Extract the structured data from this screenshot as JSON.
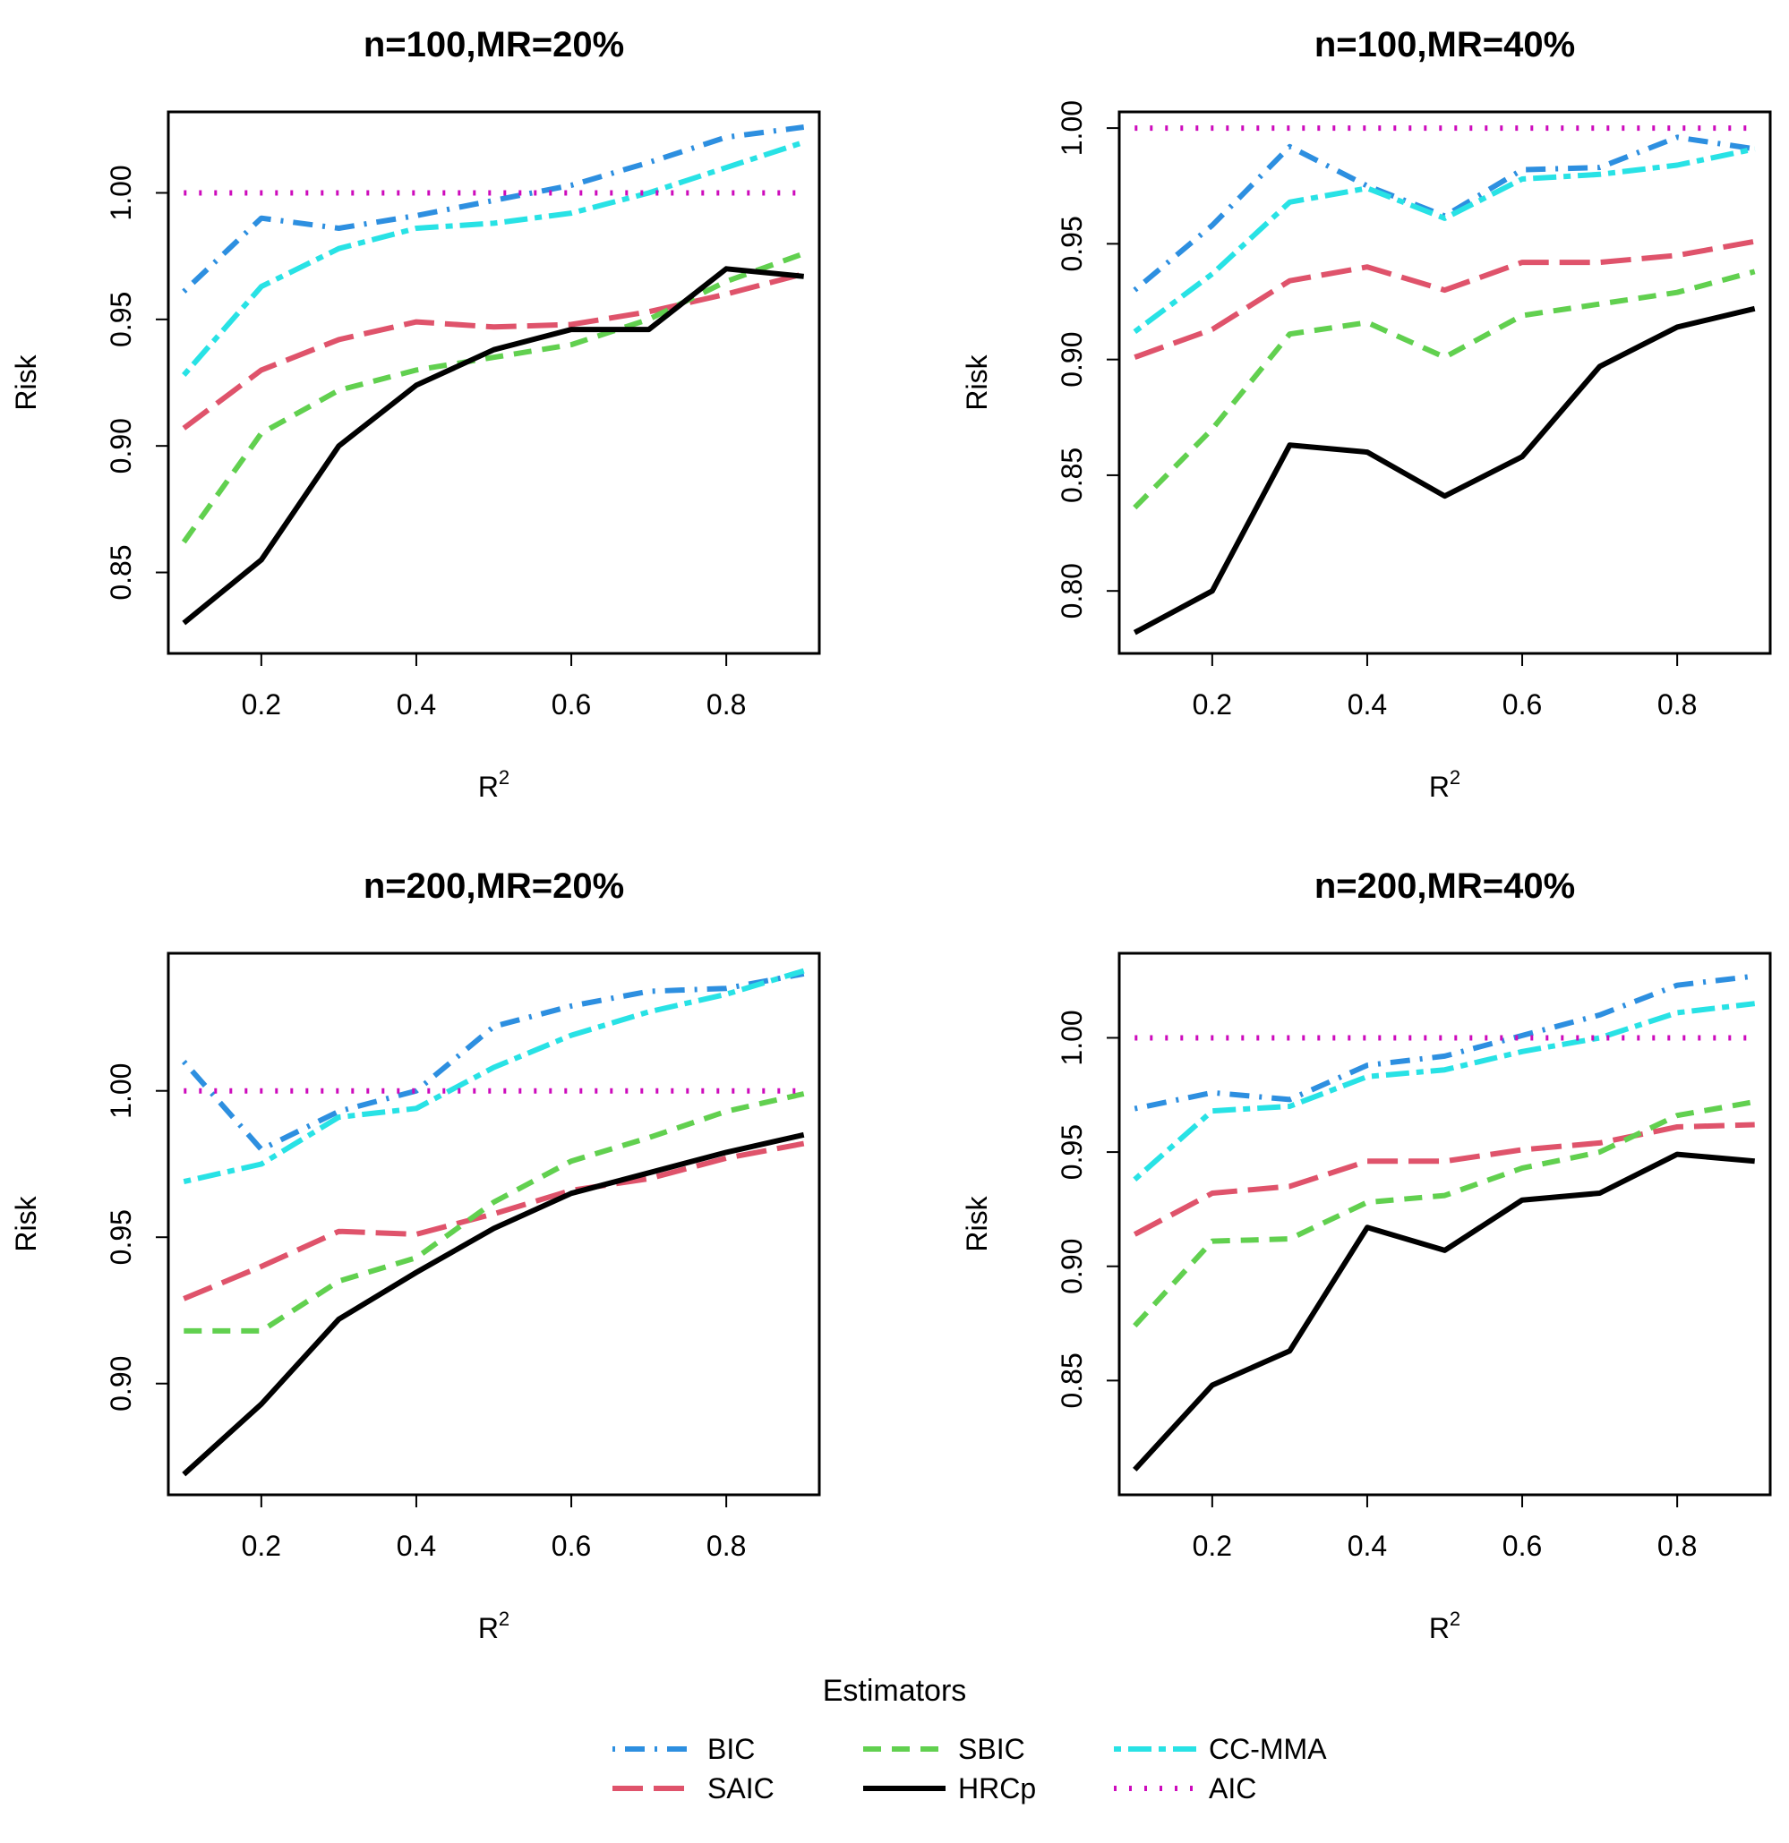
{
  "chart_data": [
    {
      "type": "line",
      "title": "n=100,MR=20%",
      "xlabel": "R",
      "xlabel_sup": "2",
      "ylabel": "Risk",
      "xlim": [
        0.08,
        0.92
      ],
      "ylim": [
        0.818,
        1.032
      ],
      "x_ticks": [
        0.2,
        0.4,
        0.6,
        0.8
      ],
      "x_tick_labels": [
        "0.2",
        "0.4",
        "0.6",
        "0.8"
      ],
      "y_ticks": [
        0.85,
        0.9,
        0.95,
        1.0
      ],
      "y_tick_labels": [
        "0.85",
        "0.90",
        "0.95",
        "1.00"
      ],
      "x": [
        0.1,
        0.2,
        0.3,
        0.4,
        0.5,
        0.6,
        0.7,
        0.8,
        0.9
      ],
      "series": [
        {
          "name": "BIC",
          "values": [
            0.961,
            0.99,
            0.986,
            0.991,
            0.997,
            1.003,
            1.012,
            1.022,
            1.026
          ]
        },
        {
          "name": "SAIC",
          "values": [
            0.907,
            0.93,
            0.942,
            0.949,
            0.947,
            0.948,
            0.953,
            0.96,
            0.968
          ]
        },
        {
          "name": "SBIC",
          "values": [
            0.862,
            0.905,
            0.922,
            0.93,
            0.935,
            0.94,
            0.95,
            0.965,
            0.976
          ]
        },
        {
          "name": "HRCp",
          "values": [
            0.83,
            0.855,
            0.9,
            0.924,
            0.938,
            0.946,
            0.946,
            0.97,
            0.967
          ]
        },
        {
          "name": "CC-MMA",
          "values": [
            0.928,
            0.963,
            0.978,
            0.986,
            0.988,
            0.992,
            1.0,
            1.01,
            1.02
          ]
        },
        {
          "name": "AIC",
          "values": [
            1.0,
            1.0,
            1.0,
            1.0,
            1.0,
            1.0,
            1.0,
            1.0,
            1.0
          ]
        }
      ]
    },
    {
      "type": "line",
      "title": "n=100,MR=40%",
      "xlabel": "R",
      "xlabel_sup": "2",
      "ylabel": "Risk",
      "xlim": [
        0.08,
        0.92
      ],
      "ylim": [
        0.773,
        1.007
      ],
      "x_ticks": [
        0.2,
        0.4,
        0.6,
        0.8
      ],
      "x_tick_labels": [
        "0.2",
        "0.4",
        "0.6",
        "0.8"
      ],
      "y_ticks": [
        0.8,
        0.85,
        0.9,
        0.95,
        1.0
      ],
      "y_tick_labels": [
        "0.80",
        "0.85",
        "0.90",
        "0.95",
        "1.00"
      ],
      "x": [
        0.1,
        0.2,
        0.3,
        0.4,
        0.5,
        0.6,
        0.7,
        0.8,
        0.9
      ],
      "series": [
        {
          "name": "BIC",
          "values": [
            0.93,
            0.958,
            0.992,
            0.975,
            0.962,
            0.982,
            0.983,
            0.996,
            0.991
          ]
        },
        {
          "name": "SAIC",
          "values": [
            0.901,
            0.913,
            0.934,
            0.94,
            0.93,
            0.942,
            0.942,
            0.945,
            0.951
          ]
        },
        {
          "name": "SBIC",
          "values": [
            0.836,
            0.87,
            0.911,
            0.916,
            0.901,
            0.919,
            0.924,
            0.929,
            0.938
          ]
        },
        {
          "name": "HRCp",
          "values": [
            0.782,
            0.8,
            0.863,
            0.86,
            0.841,
            0.858,
            0.897,
            0.914,
            0.922
          ]
        },
        {
          "name": "CC-MMA",
          "values": [
            0.912,
            0.937,
            0.968,
            0.974,
            0.961,
            0.978,
            0.98,
            0.984,
            0.991
          ]
        },
        {
          "name": "AIC",
          "values": [
            1.0,
            1.0,
            1.0,
            1.0,
            1.0,
            1.0,
            1.0,
            1.0,
            1.0
          ]
        }
      ]
    },
    {
      "type": "line",
      "title": "n=200,MR=20%",
      "xlabel": "R",
      "xlabel_sup": "2",
      "ylabel": "Risk",
      "xlim": [
        0.08,
        0.92
      ],
      "ylim": [
        0.862,
        1.047
      ],
      "x_ticks": [
        0.2,
        0.4,
        0.6,
        0.8
      ],
      "x_tick_labels": [
        "0.2",
        "0.4",
        "0.6",
        "0.8"
      ],
      "y_ticks": [
        0.9,
        0.95,
        1.0
      ],
      "y_tick_labels": [
        "0.90",
        "0.95",
        "1.00"
      ],
      "x": [
        0.1,
        0.2,
        0.3,
        0.4,
        0.5,
        0.6,
        0.7,
        0.8,
        0.9
      ],
      "series": [
        {
          "name": "BIC",
          "values": [
            1.01,
            0.98,
            0.993,
            1.0,
            1.022,
            1.029,
            1.034,
            1.035,
            1.04
          ]
        },
        {
          "name": "SAIC",
          "values": [
            0.929,
            0.94,
            0.952,
            0.951,
            0.958,
            0.966,
            0.97,
            0.977,
            0.982
          ]
        },
        {
          "name": "SBIC",
          "values": [
            0.918,
            0.918,
            0.935,
            0.943,
            0.962,
            0.976,
            0.984,
            0.993,
            0.999
          ]
        },
        {
          "name": "HRCp",
          "values": [
            0.869,
            0.893,
            0.922,
            0.938,
            0.953,
            0.965,
            0.972,
            0.979,
            0.985
          ]
        },
        {
          "name": "CC-MMA",
          "values": [
            0.969,
            0.975,
            0.991,
            0.994,
            1.008,
            1.019,
            1.027,
            1.033,
            1.041
          ]
        },
        {
          "name": "AIC",
          "values": [
            1.0,
            1.0,
            1.0,
            1.0,
            1.0,
            1.0,
            1.0,
            1.0,
            1.0
          ]
        }
      ]
    },
    {
      "type": "line",
      "title": "n=200,MR=40%",
      "xlabel": "R",
      "xlabel_sup": "2",
      "ylabel": "Risk",
      "xlim": [
        0.08,
        0.92
      ],
      "ylim": [
        0.8,
        1.037
      ],
      "x_ticks": [
        0.2,
        0.4,
        0.6,
        0.8
      ],
      "x_tick_labels": [
        "0.2",
        "0.4",
        "0.6",
        "0.8"
      ],
      "y_ticks": [
        0.85,
        0.9,
        0.95,
        1.0
      ],
      "y_tick_labels": [
        "0.85",
        "0.90",
        "0.95",
        "1.00"
      ],
      "x": [
        0.1,
        0.2,
        0.3,
        0.4,
        0.5,
        0.6,
        0.7,
        0.8,
        0.9
      ],
      "series": [
        {
          "name": "BIC",
          "values": [
            0.969,
            0.976,
            0.973,
            0.988,
            0.992,
            1.001,
            1.01,
            1.023,
            1.027
          ]
        },
        {
          "name": "SAIC",
          "values": [
            0.914,
            0.932,
            0.935,
            0.946,
            0.946,
            0.951,
            0.954,
            0.961,
            0.962
          ]
        },
        {
          "name": "SBIC",
          "values": [
            0.874,
            0.911,
            0.912,
            0.928,
            0.931,
            0.943,
            0.95,
            0.966,
            0.972
          ]
        },
        {
          "name": "HRCp",
          "values": [
            0.811,
            0.848,
            0.863,
            0.917,
            0.907,
            0.929,
            0.932,
            0.949,
            0.946
          ]
        },
        {
          "name": "CC-MMA",
          "values": [
            0.938,
            0.968,
            0.97,
            0.983,
            0.986,
            0.994,
            1.0,
            1.011,
            1.015
          ]
        },
        {
          "name": "AIC",
          "values": [
            1.0,
            1.0,
            1.0,
            1.0,
            1.0,
            1.0,
            1.0,
            1.0,
            1.0
          ]
        }
      ]
    }
  ],
  "legend": {
    "title": "Estimators",
    "entries": [
      {
        "name": "BIC",
        "color": "#2D8FE0",
        "dash": "dotdash"
      },
      {
        "name": "SAIC",
        "color": "#DF536B",
        "dash": "longdash"
      },
      {
        "name": "SBIC",
        "color": "#61D04F",
        "dash": "dashed"
      },
      {
        "name": "HRCp",
        "color": "#000000",
        "dash": "solid"
      },
      {
        "name": "CC-MMA",
        "color": "#28E2E5",
        "dash": "twodash"
      },
      {
        "name": "AIC",
        "color": "#CD0BBC",
        "dash": "dotted"
      }
    ]
  }
}
